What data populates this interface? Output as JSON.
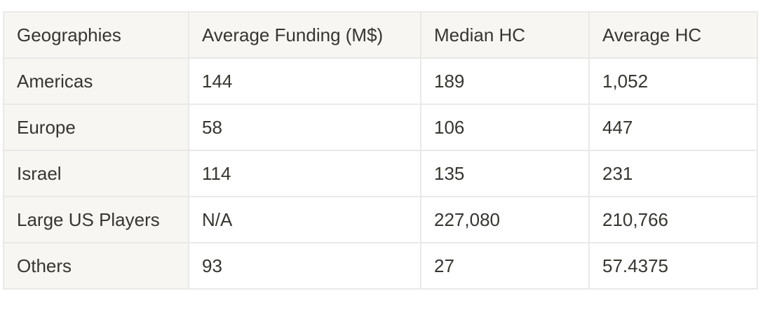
{
  "table": {
    "columns": [
      "Geographies",
      "Average Funding (M$)",
      "Median HC",
      "Average HC"
    ],
    "rows": [
      [
        "Americas",
        "144",
        "189",
        "1,052"
      ],
      [
        "Europe",
        "58",
        "106",
        "447"
      ],
      [
        "Israel",
        "114",
        "135",
        "231"
      ],
      [
        "Large US Players",
        "N/A",
        "227,080",
        "210,766"
      ],
      [
        "Others",
        "93",
        "27",
        "57.4375"
      ]
    ]
  }
}
